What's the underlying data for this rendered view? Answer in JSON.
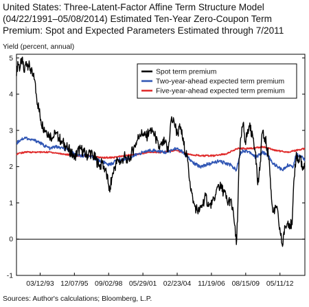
{
  "title_lines": [
    "United States: Three-Latent-Factor Affine Term Structure Model",
    "(04/22/1991–05/08/2014) Estimated Ten-Year Zero-Coupon Term",
    "Premium: Spot and Expected Parameters Estimated through 7/2011"
  ],
  "ylabel": "Yield (percent, annual)",
  "source": "Sources: Author's calculations; Bloomberg, L.P.",
  "chart_data": {
    "type": "line",
    "title": "United States: Three-Latent-Factor Affine Term Structure Model (04/22/1991–05/08/2014) Estimated Ten-Year Zero-Coupon Term Premium: Spot and Expected Parameters Estimated through 7/2011",
    "xlabel": "",
    "ylabel": "Yield (percent, annual)",
    "x_tick_labels": [
      "03/12/93",
      "12/07/95",
      "09/02/98",
      "05/29/01",
      "02/23/04",
      "11/19/06",
      "08/15/09",
      "05/11/12"
    ],
    "y_ticks": [
      -1,
      0,
      1,
      2,
      3,
      4,
      5
    ],
    "ylim": [
      -1,
      5.1
    ],
    "grid": false,
    "reference_line_y": 0,
    "legend_position": "top-right",
    "series": [
      {
        "name": "Spot term premium",
        "color": "#000000",
        "points": [
          [
            "1991-04-22",
            4.5
          ],
          [
            "1991-06-01",
            4.9
          ],
          [
            "1991-08-01",
            4.7
          ],
          [
            "1991-10-01",
            5.0
          ],
          [
            "1991-12-01",
            4.6
          ],
          [
            "1992-02-01",
            4.9
          ],
          [
            "1992-04-01",
            4.8
          ],
          [
            "1992-06-01",
            4.7
          ],
          [
            "1992-08-01",
            4.5
          ],
          [
            "1992-10-01",
            4.4
          ],
          [
            "1992-12-01",
            3.9
          ],
          [
            "1993-02-01",
            3.6
          ],
          [
            "1993-04-01",
            3.3
          ],
          [
            "1993-06-01",
            3.1
          ],
          [
            "1993-09-01",
            3.0
          ],
          [
            "1993-12-01",
            2.9
          ],
          [
            "1994-03-01",
            2.8
          ],
          [
            "1994-06-01",
            2.9
          ],
          [
            "1994-09-01",
            2.8
          ],
          [
            "1994-12-01",
            2.7
          ],
          [
            "1995-03-01",
            2.6
          ],
          [
            "1995-06-01",
            2.5
          ],
          [
            "1995-09-01",
            2.4
          ],
          [
            "1995-12-01",
            2.2
          ],
          [
            "1996-03-01",
            2.4
          ],
          [
            "1996-06-01",
            2.5
          ],
          [
            "1996-09-01",
            2.4
          ],
          [
            "1996-12-01",
            2.3
          ],
          [
            "1997-03-01",
            2.4
          ],
          [
            "1997-06-01",
            2.3
          ],
          [
            "1997-09-01",
            2.2
          ],
          [
            "1997-12-01",
            2.0
          ],
          [
            "1998-03-01",
            2.1
          ],
          [
            "1998-06-01",
            1.9
          ],
          [
            "1998-09-01",
            1.5
          ],
          [
            "1998-10-05",
            1.3
          ],
          [
            "1998-12-01",
            1.7
          ],
          [
            "1999-03-01",
            2.0
          ],
          [
            "1999-06-01",
            2.2
          ],
          [
            "1999-09-01",
            2.1
          ],
          [
            "1999-12-01",
            2.3
          ],
          [
            "2000-03-01",
            2.1
          ],
          [
            "2000-06-01",
            2.3
          ],
          [
            "2000-09-01",
            2.5
          ],
          [
            "2000-12-01",
            2.7
          ],
          [
            "2001-03-01",
            2.9
          ],
          [
            "2001-06-01",
            2.9
          ],
          [
            "2001-09-01",
            2.8
          ],
          [
            "2001-12-01",
            3.0
          ],
          [
            "2002-03-01",
            3.0
          ],
          [
            "2002-06-01",
            2.8
          ],
          [
            "2002-09-01",
            2.5
          ],
          [
            "2002-12-01",
            2.6
          ],
          [
            "2003-03-01",
            2.7
          ],
          [
            "2003-06-01",
            2.4
          ],
          [
            "2003-09-01",
            3.3
          ],
          [
            "2003-12-01",
            3.2
          ],
          [
            "2004-03-01",
            2.9
          ],
          [
            "2004-06-01",
            3.1
          ],
          [
            "2004-09-01",
            2.6
          ],
          [
            "2004-12-01",
            2.3
          ],
          [
            "2005-03-01",
            1.6
          ],
          [
            "2005-06-01",
            1.0
          ],
          [
            "2005-09-01",
            0.85
          ],
          [
            "2005-12-01",
            0.75
          ],
          [
            "2006-03-01",
            0.95
          ],
          [
            "2006-06-01",
            1.2
          ],
          [
            "2006-09-01",
            0.9
          ],
          [
            "2006-12-01",
            0.95
          ],
          [
            "2007-03-01",
            1.1
          ],
          [
            "2007-06-01",
            1.5
          ],
          [
            "2007-09-01",
            1.4
          ],
          [
            "2007-12-01",
            1.3
          ],
          [
            "2008-03-01",
            1.0
          ],
          [
            "2008-06-01",
            1.1
          ],
          [
            "2008-09-01",
            0.6
          ],
          [
            "2008-11-15",
            -0.15
          ],
          [
            "2008-12-20",
            0.5
          ],
          [
            "2009-02-01",
            2.2
          ],
          [
            "2009-04-01",
            2.8
          ],
          [
            "2009-06-01",
            3.2
          ],
          [
            "2009-08-01",
            2.7
          ],
          [
            "2009-10-01",
            2.9
          ],
          [
            "2009-12-01",
            3.1
          ],
          [
            "2010-03-01",
            2.9
          ],
          [
            "2010-06-01",
            2.4
          ],
          [
            "2010-08-01",
            1.5
          ],
          [
            "2010-10-01",
            1.9
          ],
          [
            "2010-12-01",
            2.9
          ],
          [
            "2011-03-01",
            2.8
          ],
          [
            "2011-05-01",
            2.5
          ],
          [
            "2011-07-01",
            2.2
          ],
          [
            "2011-08-15",
            1.4
          ],
          [
            "2011-10-01",
            0.9
          ],
          [
            "2011-12-01",
            0.7
          ],
          [
            "2012-02-01",
            0.9
          ],
          [
            "2012-04-01",
            0.5
          ],
          [
            "2012-06-01",
            0.1
          ],
          [
            "2012-07-25",
            -0.2
          ],
          [
            "2012-09-01",
            0.2
          ],
          [
            "2012-11-01",
            0.3
          ],
          [
            "2013-01-01",
            0.5
          ],
          [
            "2013-03-01",
            0.4
          ],
          [
            "2013-05-01",
            0.4
          ],
          [
            "2013-07-01",
            1.7
          ],
          [
            "2013-09-01",
            2.4
          ],
          [
            "2013-11-01",
            2.1
          ],
          [
            "2014-01-01",
            2.3
          ],
          [
            "2014-03-01",
            1.9
          ],
          [
            "2014-05-08",
            2.0
          ]
        ]
      },
      {
        "name": "Two-year-ahead expected term premium",
        "color": "#2f55b4",
        "points": [
          [
            "1991-04-22",
            2.65
          ],
          [
            "1991-09-01",
            2.75
          ],
          [
            "1992-01-01",
            2.8
          ],
          [
            "1992-06-01",
            2.75
          ],
          [
            "1993-01-01",
            2.7
          ],
          [
            "1993-06-01",
            2.6
          ],
          [
            "1994-01-01",
            2.5
          ],
          [
            "1994-06-01",
            2.55
          ],
          [
            "1995-01-01",
            2.5
          ],
          [
            "1995-06-01",
            2.45
          ],
          [
            "1996-01-01",
            2.35
          ],
          [
            "1996-06-01",
            2.3
          ],
          [
            "1997-01-01",
            2.3
          ],
          [
            "1997-06-01",
            2.25
          ],
          [
            "1998-01-01",
            2.15
          ],
          [
            "1998-06-01",
            2.1
          ],
          [
            "1998-10-01",
            2.05
          ],
          [
            "1999-01-01",
            2.1
          ],
          [
            "1999-06-01",
            2.2
          ],
          [
            "2000-01-01",
            2.2
          ],
          [
            "2000-06-01",
            2.25
          ],
          [
            "2001-01-01",
            2.35
          ],
          [
            "2001-06-01",
            2.4
          ],
          [
            "2002-01-01",
            2.45
          ],
          [
            "2002-06-01",
            2.45
          ],
          [
            "2003-01-01",
            2.4
          ],
          [
            "2003-06-01",
            2.4
          ],
          [
            "2004-01-01",
            2.5
          ],
          [
            "2004-06-01",
            2.45
          ],
          [
            "2005-01-01",
            2.25
          ],
          [
            "2005-06-01",
            2.1
          ],
          [
            "2006-01-01",
            2.0
          ],
          [
            "2006-06-01",
            2.05
          ],
          [
            "2007-01-01",
            2.1
          ],
          [
            "2007-06-01",
            2.15
          ],
          [
            "2008-01-01",
            2.1
          ],
          [
            "2008-06-01",
            2.05
          ],
          [
            "2008-11-15",
            1.9
          ],
          [
            "2009-03-01",
            2.35
          ],
          [
            "2009-06-01",
            2.45
          ],
          [
            "2010-01-01",
            2.4
          ],
          [
            "2010-06-01",
            2.25
          ],
          [
            "2011-01-01",
            2.4
          ],
          [
            "2011-06-01",
            2.3
          ],
          [
            "2011-10-01",
            2.1
          ],
          [
            "2012-03-01",
            2.0
          ],
          [
            "2012-07-25",
            1.9
          ],
          [
            "2013-01-01",
            2.05
          ],
          [
            "2013-06-01",
            2.0
          ],
          [
            "2013-09-01",
            2.35
          ],
          [
            "2014-01-01",
            2.3
          ],
          [
            "2014-05-08",
            2.2
          ]
        ]
      },
      {
        "name": "Five-year-ahead expected term premium",
        "color": "#e02c2c",
        "points": [
          [
            "1991-04-22",
            2.35
          ],
          [
            "1992-01-01",
            2.4
          ],
          [
            "1993-01-01",
            2.4
          ],
          [
            "1994-01-01",
            2.4
          ],
          [
            "1995-01-01",
            2.35
          ],
          [
            "1996-01-01",
            2.3
          ],
          [
            "1997-01-01",
            2.3
          ],
          [
            "1998-01-01",
            2.25
          ],
          [
            "1999-01-01",
            2.25
          ],
          [
            "2000-01-01",
            2.3
          ],
          [
            "2001-01-01",
            2.35
          ],
          [
            "2002-01-01",
            2.4
          ],
          [
            "2003-01-01",
            2.4
          ],
          [
            "2004-01-01",
            2.45
          ],
          [
            "2005-01-01",
            2.35
          ],
          [
            "2006-01-01",
            2.3
          ],
          [
            "2007-01-01",
            2.3
          ],
          [
            "2008-01-01",
            2.35
          ],
          [
            "2009-01-01",
            2.5
          ],
          [
            "2010-01-01",
            2.5
          ],
          [
            "2011-01-01",
            2.55
          ],
          [
            "2012-01-01",
            2.45
          ],
          [
            "2013-01-01",
            2.4
          ],
          [
            "2014-05-08",
            2.5
          ]
        ]
      }
    ]
  }
}
